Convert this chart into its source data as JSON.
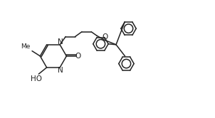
{
  "bg_color": "#ffffff",
  "line_color": "#222222",
  "line_width": 1.1,
  "fig_width": 3.02,
  "fig_height": 1.66,
  "dpi": 100,
  "xlim": [
    0,
    10.5
  ],
  "ylim": [
    -4.2,
    3.8
  ]
}
